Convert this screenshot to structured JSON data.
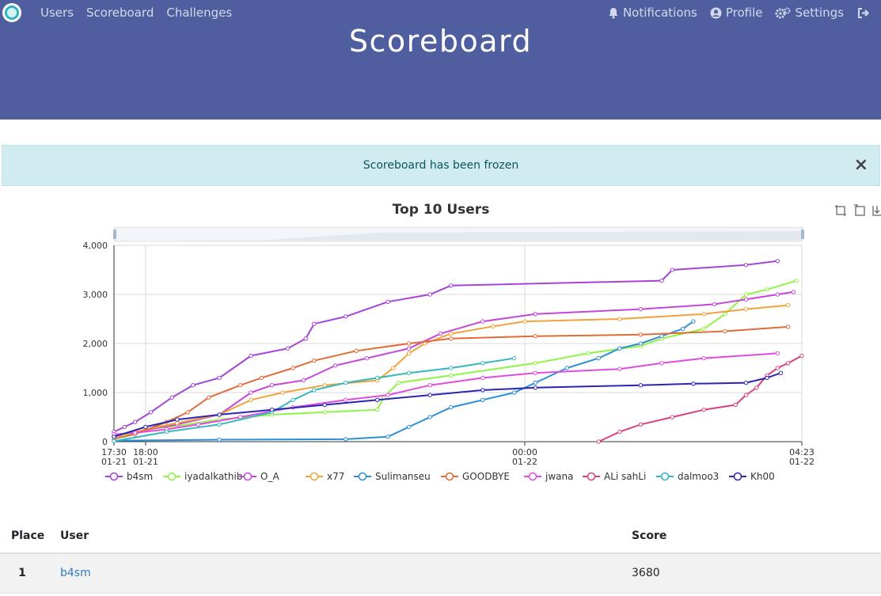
{
  "nav": {
    "left": [
      "Users",
      "Scoreboard",
      "Challenges"
    ],
    "notifications": "Notifications",
    "profile": "Profile",
    "settings": "Settings"
  },
  "header": {
    "title": "Scoreboard"
  },
  "alert": {
    "message": "Scoreboard has been frozen",
    "close": "×"
  },
  "colors": {
    "navbar": "#4e5e9e",
    "alert_bg": "#d1ecf1",
    "link": "#337ab7"
  },
  "chart_data": {
    "type": "line",
    "title": "Top 10 Users",
    "y_ticks": [
      "0",
      "1,000",
      "2,000",
      "3,000",
      "4,000"
    ],
    "ylim": [
      0,
      4000
    ],
    "x_ticks": [
      {
        "t": 0,
        "time": "17:30",
        "date": "01-21"
      },
      {
        "t": 30,
        "time": "18:00",
        "date": "01-21"
      },
      {
        "t": 390,
        "time": "00:00",
        "date": "01-22"
      },
      {
        "t": 653,
        "time": "04:23",
        "date": "01-22"
      }
    ],
    "grid": true,
    "legend_position": "bottom",
    "series": [
      {
        "name": "b4sm",
        "color": "#a345d9",
        "points": [
          [
            0,
            200
          ],
          [
            10,
            300
          ],
          [
            20,
            400
          ],
          [
            35,
            600
          ],
          [
            55,
            900
          ],
          [
            75,
            1150
          ],
          [
            100,
            1300
          ],
          [
            130,
            1750
          ],
          [
            165,
            1900
          ],
          [
            182,
            2100
          ],
          [
            190,
            2400
          ],
          [
            220,
            2550
          ],
          [
            260,
            2850
          ],
          [
            300,
            3000
          ],
          [
            320,
            3180
          ],
          [
            520,
            3280
          ],
          [
            530,
            3500
          ],
          [
            600,
            3600
          ],
          [
            630,
            3680
          ]
        ]
      },
      {
        "name": "iyadalkathib",
        "color": "#8ef545",
        "points": [
          [
            0,
            50
          ],
          [
            10,
            120
          ],
          [
            30,
            250
          ],
          [
            60,
            320
          ],
          [
            100,
            450
          ],
          [
            150,
            550
          ],
          [
            200,
            600
          ],
          [
            250,
            650
          ],
          [
            256,
            900
          ],
          [
            270,
            1200
          ],
          [
            320,
            1350
          ],
          [
            400,
            1600
          ],
          [
            450,
            1800
          ],
          [
            500,
            1950
          ],
          [
            520,
            2100
          ],
          [
            560,
            2300
          ],
          [
            580,
            2600
          ],
          [
            600,
            3000
          ],
          [
            620,
            3100
          ],
          [
            648,
            3280
          ]
        ]
      },
      {
        "name": "O_A",
        "color": "#c646d9",
        "points": [
          [
            0,
            120
          ],
          [
            20,
            200
          ],
          [
            60,
            350
          ],
          [
            100,
            550
          ],
          [
            130,
            1000
          ],
          [
            150,
            1150
          ],
          [
            180,
            1250
          ],
          [
            210,
            1550
          ],
          [
            240,
            1700
          ],
          [
            280,
            1900
          ],
          [
            310,
            2200
          ],
          [
            350,
            2450
          ],
          [
            400,
            2600
          ],
          [
            500,
            2700
          ],
          [
            570,
            2800
          ],
          [
            600,
            2900
          ],
          [
            630,
            3000
          ],
          [
            645,
            3050
          ]
        ]
      },
      {
        "name": "x77",
        "color": "#f0a33a",
        "points": [
          [
            0,
            100
          ],
          [
            20,
            200
          ],
          [
            60,
            380
          ],
          [
            100,
            550
          ],
          [
            130,
            850
          ],
          [
            160,
            1000
          ],
          [
            200,
            1150
          ],
          [
            250,
            1250
          ],
          [
            265,
            1500
          ],
          [
            280,
            1800
          ],
          [
            295,
            2000
          ],
          [
            320,
            2200
          ],
          [
            360,
            2350
          ],
          [
            390,
            2450
          ],
          [
            480,
            2500
          ],
          [
            560,
            2600
          ],
          [
            600,
            2700
          ],
          [
            640,
            2780
          ]
        ]
      },
      {
        "name": "Sulimanseu",
        "color": "#2a8fd6",
        "points": [
          [
            0,
            20
          ],
          [
            100,
            40
          ],
          [
            220,
            50
          ],
          [
            260,
            100
          ],
          [
            280,
            300
          ],
          [
            300,
            500
          ],
          [
            320,
            700
          ],
          [
            350,
            850
          ],
          [
            380,
            1000
          ],
          [
            400,
            1200
          ],
          [
            430,
            1500
          ],
          [
            460,
            1700
          ],
          [
            480,
            1900
          ],
          [
            500,
            2000
          ],
          [
            520,
            2150
          ],
          [
            540,
            2300
          ],
          [
            550,
            2450
          ]
        ]
      },
      {
        "name": "GOODBYE",
        "color": "#e26b37",
        "points": [
          [
            0,
            60
          ],
          [
            20,
            150
          ],
          [
            50,
            400
          ],
          [
            70,
            600
          ],
          [
            90,
            900
          ],
          [
            120,
            1150
          ],
          [
            140,
            1300
          ],
          [
            170,
            1500
          ],
          [
            190,
            1650
          ],
          [
            230,
            1850
          ],
          [
            280,
            2000
          ],
          [
            320,
            2100
          ],
          [
            400,
            2150
          ],
          [
            500,
            2180
          ],
          [
            580,
            2250
          ],
          [
            640,
            2340
          ]
        ]
      },
      {
        "name": "jwana",
        "color": "#e04be0",
        "points": [
          [
            0,
            150
          ],
          [
            20,
            180
          ],
          [
            50,
            250
          ],
          [
            80,
            350
          ],
          [
            120,
            500
          ],
          [
            170,
            700
          ],
          [
            220,
            850
          ],
          [
            260,
            950
          ],
          [
            300,
            1150
          ],
          [
            350,
            1300
          ],
          [
            400,
            1400
          ],
          [
            480,
            1480
          ],
          [
            520,
            1600
          ],
          [
            560,
            1700
          ],
          [
            630,
            1800
          ]
        ]
      },
      {
        "name": "ALi sahLi",
        "color": "#d9427f",
        "points": [
          [
            460,
            0
          ],
          [
            480,
            200
          ],
          [
            500,
            350
          ],
          [
            530,
            500
          ],
          [
            560,
            650
          ],
          [
            590,
            750
          ],
          [
            600,
            950
          ],
          [
            610,
            1100
          ],
          [
            620,
            1350
          ],
          [
            630,
            1500
          ],
          [
            640,
            1600
          ],
          [
            653,
            1750
          ]
        ]
      },
      {
        "name": "dalmoo3",
        "color": "#33b7c2",
        "points": [
          [
            0,
            10
          ],
          [
            50,
            200
          ],
          [
            100,
            350
          ],
          [
            150,
            600
          ],
          [
            170,
            850
          ],
          [
            190,
            1050
          ],
          [
            220,
            1200
          ],
          [
            250,
            1300
          ],
          [
            280,
            1400
          ],
          [
            320,
            1500
          ],
          [
            350,
            1600
          ],
          [
            380,
            1700
          ]
        ]
      },
      {
        "name": "Kh00",
        "color": "#2b25b5",
        "points": [
          [
            0,
            100
          ],
          [
            30,
            300
          ],
          [
            60,
            450
          ],
          [
            100,
            550
          ],
          [
            150,
            650
          ],
          [
            200,
            750
          ],
          [
            250,
            850
          ],
          [
            300,
            950
          ],
          [
            350,
            1050
          ],
          [
            400,
            1100
          ],
          [
            500,
            1150
          ],
          [
            550,
            1180
          ],
          [
            600,
            1200
          ],
          [
            620,
            1300
          ],
          [
            633,
            1400
          ]
        ]
      }
    ]
  },
  "table": {
    "headers": {
      "place": "Place",
      "user": "User",
      "score": "Score"
    },
    "rows": [
      {
        "place": "1",
        "user": "b4sm",
        "score": "3680"
      }
    ]
  }
}
